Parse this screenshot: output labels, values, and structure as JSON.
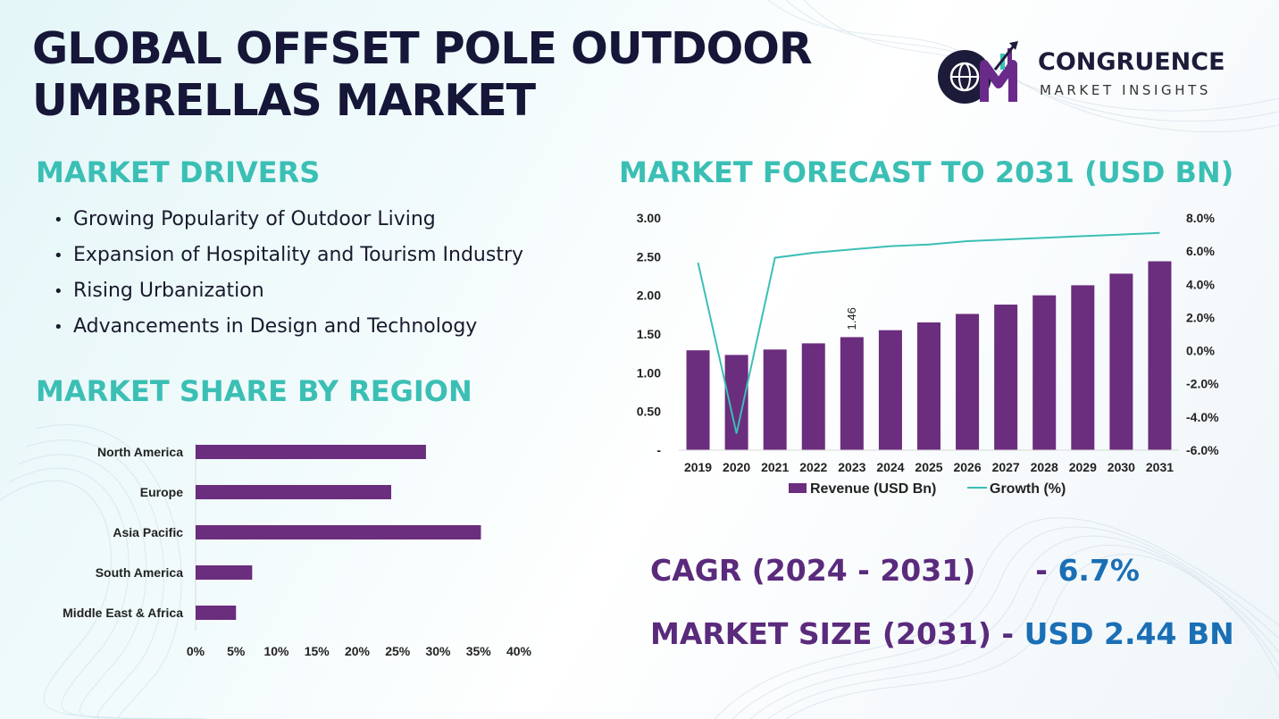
{
  "header": {
    "title_line1": "GLOBAL OFFSET POLE OUTDOOR",
    "title_line2": "UMBRELLAS MARKET"
  },
  "logo": {
    "name": "CONGRUENCE",
    "tagline": "MARKET INSIGHTS",
    "mark_letters": "CM",
    "colors": {
      "purple": "#6a2a8a",
      "teal": "#3bbfb5",
      "dark": "#1c1c3a"
    }
  },
  "drivers": {
    "heading": "MARKET DRIVERS",
    "items": [
      "Growing Popularity of Outdoor Living",
      "Expansion of Hospitality and Tourism Industry",
      "Rising Urbanization",
      "Advancements in Design and Technology"
    ]
  },
  "region": {
    "heading": "MARKET SHARE BY REGION"
  },
  "forecast": {
    "heading": "MARKET FORECAST TO 2031 (USD BN)"
  },
  "kpis": {
    "cagr_label": "CAGR (2024 - 2031)",
    "cagr_sep": "- ",
    "cagr_value": "6.7%",
    "size_label": "MARKET SIZE (2031)",
    "size_sep": " - ",
    "size_value": "USD 2.44 BN"
  },
  "chart_data": [
    {
      "type": "bar",
      "orientation": "horizontal",
      "categories": [
        "North America",
        "Europe",
        "Asia Pacific",
        "South America",
        "Middle East & Africa"
      ],
      "values": [
        28.5,
        24.2,
        35.3,
        7.0,
        5.0
      ],
      "xlim": [
        0,
        40
      ],
      "x_ticks": [
        "0%",
        "5%",
        "10%",
        "15%",
        "20%",
        "25%",
        "30%",
        "35%",
        "40%"
      ],
      "color": "#6b2d7d",
      "grid": false
    },
    {
      "type": "bar",
      "categories": [
        "2019",
        "2020",
        "2021",
        "2022",
        "2023",
        "2024",
        "2025",
        "2026",
        "2027",
        "2028",
        "2029",
        "2030",
        "2031"
      ],
      "series": [
        {
          "name": "Revenue (USD Bn)",
          "type": "bar",
          "axis": "left",
          "values": [
            1.29,
            1.23,
            1.3,
            1.38,
            1.46,
            1.55,
            1.65,
            1.76,
            1.88,
            2.0,
            2.13,
            2.28,
            2.44
          ],
          "color": "#6b2d7d"
        },
        {
          "name": "Growth (%)",
          "type": "line",
          "axis": "right",
          "values": [
            5.3,
            -5.0,
            5.6,
            5.9,
            6.1,
            6.3,
            6.4,
            6.6,
            6.7,
            6.8,
            6.9,
            7.0,
            7.1
          ],
          "color": "#3bbfb5"
        }
      ],
      "y_left_lim": [
        0,
        3.0
      ],
      "y_left_ticks": [
        "-",
        "0.50",
        "1.00",
        "1.50",
        "2.00",
        "2.50",
        "3.00"
      ],
      "y_right_lim": [
        -6.0,
        8.0
      ],
      "y_right_ticks": [
        "-6.0%",
        "-4.0%",
        "-2.0%",
        "0.0%",
        "2.0%",
        "4.0%",
        "6.0%",
        "8.0%"
      ],
      "data_labels": [
        {
          "category": "2023",
          "text": "1.46"
        }
      ],
      "legend": "bottom",
      "grid": false
    }
  ]
}
